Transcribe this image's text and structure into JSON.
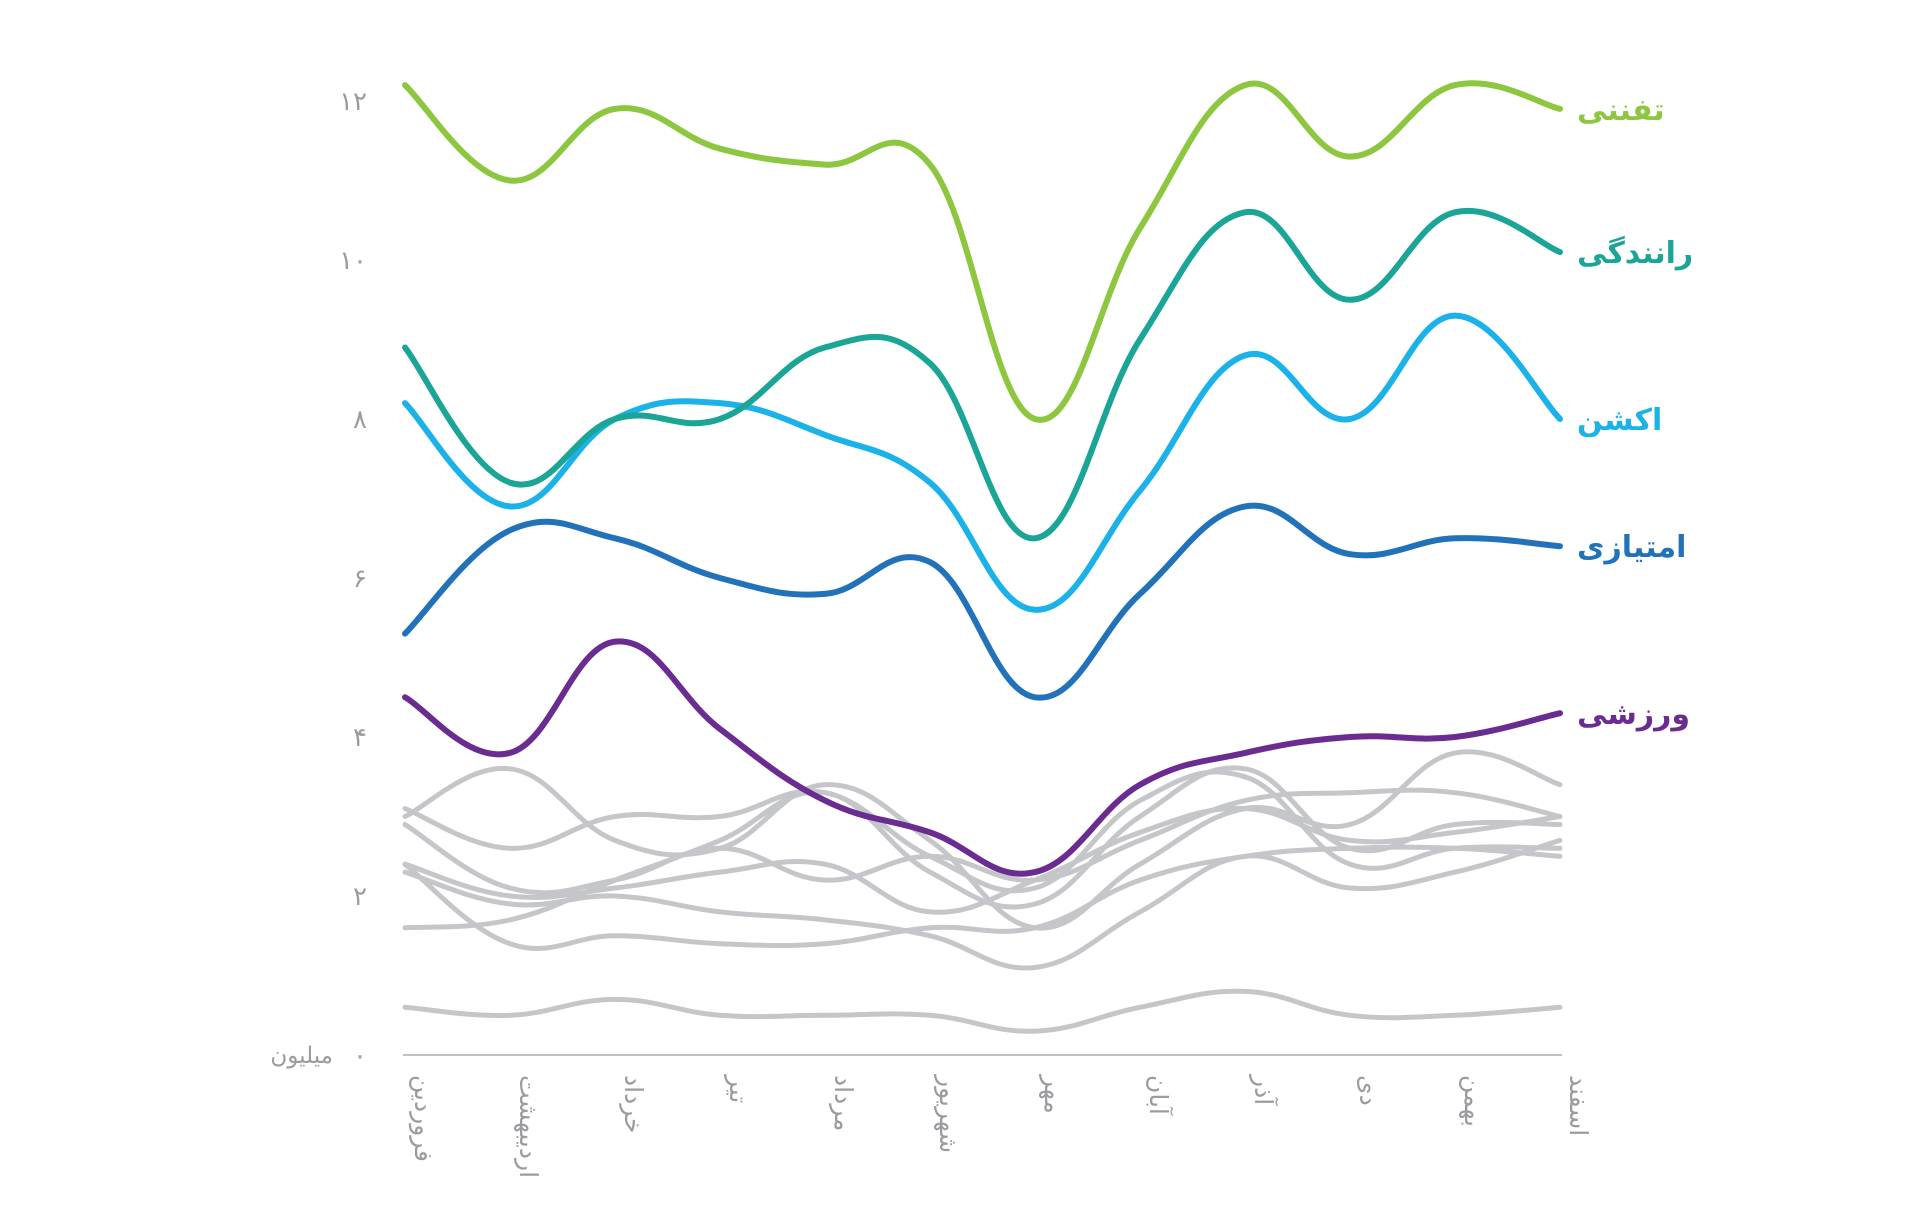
{
  "chart_data": {
    "type": "line",
    "title": "",
    "xlabel": "",
    "ylabel": "",
    "unit_label": "میلیون",
    "categories": [
      "فروردین",
      "اردیبهشت",
      "خرداد",
      "تیر",
      "مرداد",
      "شهریور",
      "مهر",
      "آبان",
      "آذر",
      "دی",
      "بهمن",
      "اسفند"
    ],
    "y_ticks": [
      0,
      2,
      4,
      6,
      8,
      10,
      12
    ],
    "y_tick_labels": [
      "۰",
      "۲",
      "۴",
      "۶",
      "۸",
      "۱۰",
      "۱۲"
    ],
    "ylim": [
      0,
      12.3
    ],
    "grid": false,
    "series": [
      {
        "name": "تفننی",
        "color": "#8dc63f",
        "values": [
          12.2,
          11.0,
          11.9,
          11.4,
          11.2,
          11.2,
          8.0,
          10.4,
          12.2,
          11.3,
          12.2,
          11.9
        ]
      },
      {
        "name": "رانندگی",
        "color": "#1aa597",
        "values": [
          8.9,
          7.2,
          8.0,
          8.0,
          8.9,
          8.7,
          6.5,
          9.0,
          10.6,
          9.5,
          10.6,
          10.1
        ]
      },
      {
        "name": "اکشن",
        "color": "#1ab2e8",
        "values": [
          8.2,
          6.9,
          8.0,
          8.2,
          7.8,
          7.2,
          5.6,
          7.1,
          8.8,
          8.0,
          9.3,
          8.0
        ]
      },
      {
        "name": "امتیازی",
        "color": "#2272b9",
        "values": [
          5.3,
          6.6,
          6.5,
          6.0,
          5.8,
          6.2,
          4.5,
          5.8,
          6.9,
          6.3,
          6.5,
          6.4
        ]
      },
      {
        "name": "ورزشی",
        "color": "#6a2c91",
        "values": [
          4.5,
          3.8,
          5.2,
          4.1,
          3.2,
          2.8,
          2.3,
          3.4,
          3.8,
          4.0,
          4.0,
          4.3
        ]
      }
    ],
    "other_series": {
      "color": "#c5c6c9",
      "values": [
        [
          0.6,
          0.5,
          0.7,
          0.5,
          0.5,
          0.5,
          0.3,
          0.6,
          0.8,
          0.5,
          0.5,
          0.6
        ],
        [
          1.6,
          1.7,
          2.2,
          2.7,
          3.3,
          2.3,
          1.9,
          3.0,
          3.6,
          2.6,
          2.9,
          2.9
        ],
        [
          3.0,
          3.6,
          2.7,
          2.6,
          3.4,
          2.7,
          1.6,
          2.4,
          3.1,
          2.9,
          3.8,
          3.4
        ],
        [
          3.1,
          2.6,
          3.0,
          3.0,
          3.3,
          2.5,
          2.1,
          3.2,
          3.5,
          2.4,
          2.6,
          2.6
        ],
        [
          2.4,
          2.0,
          2.1,
          2.3,
          2.4,
          1.8,
          2.2,
          2.8,
          3.1,
          2.7,
          2.8,
          3.0
        ],
        [
          2.3,
          1.9,
          2.0,
          1.8,
          1.7,
          1.5,
          1.1,
          1.8,
          2.5,
          2.1,
          2.3,
          2.7
        ],
        [
          2.4,
          1.4,
          1.5,
          1.4,
          1.4,
          1.6,
          1.6,
          2.2,
          2.5,
          2.6,
          2.6,
          2.5
        ],
        [
          2.9,
          2.1,
          2.2,
          2.6,
          2.2,
          2.5,
          2.2,
          2.7,
          3.2,
          3.3,
          3.3,
          3.0
        ]
      ]
    }
  }
}
